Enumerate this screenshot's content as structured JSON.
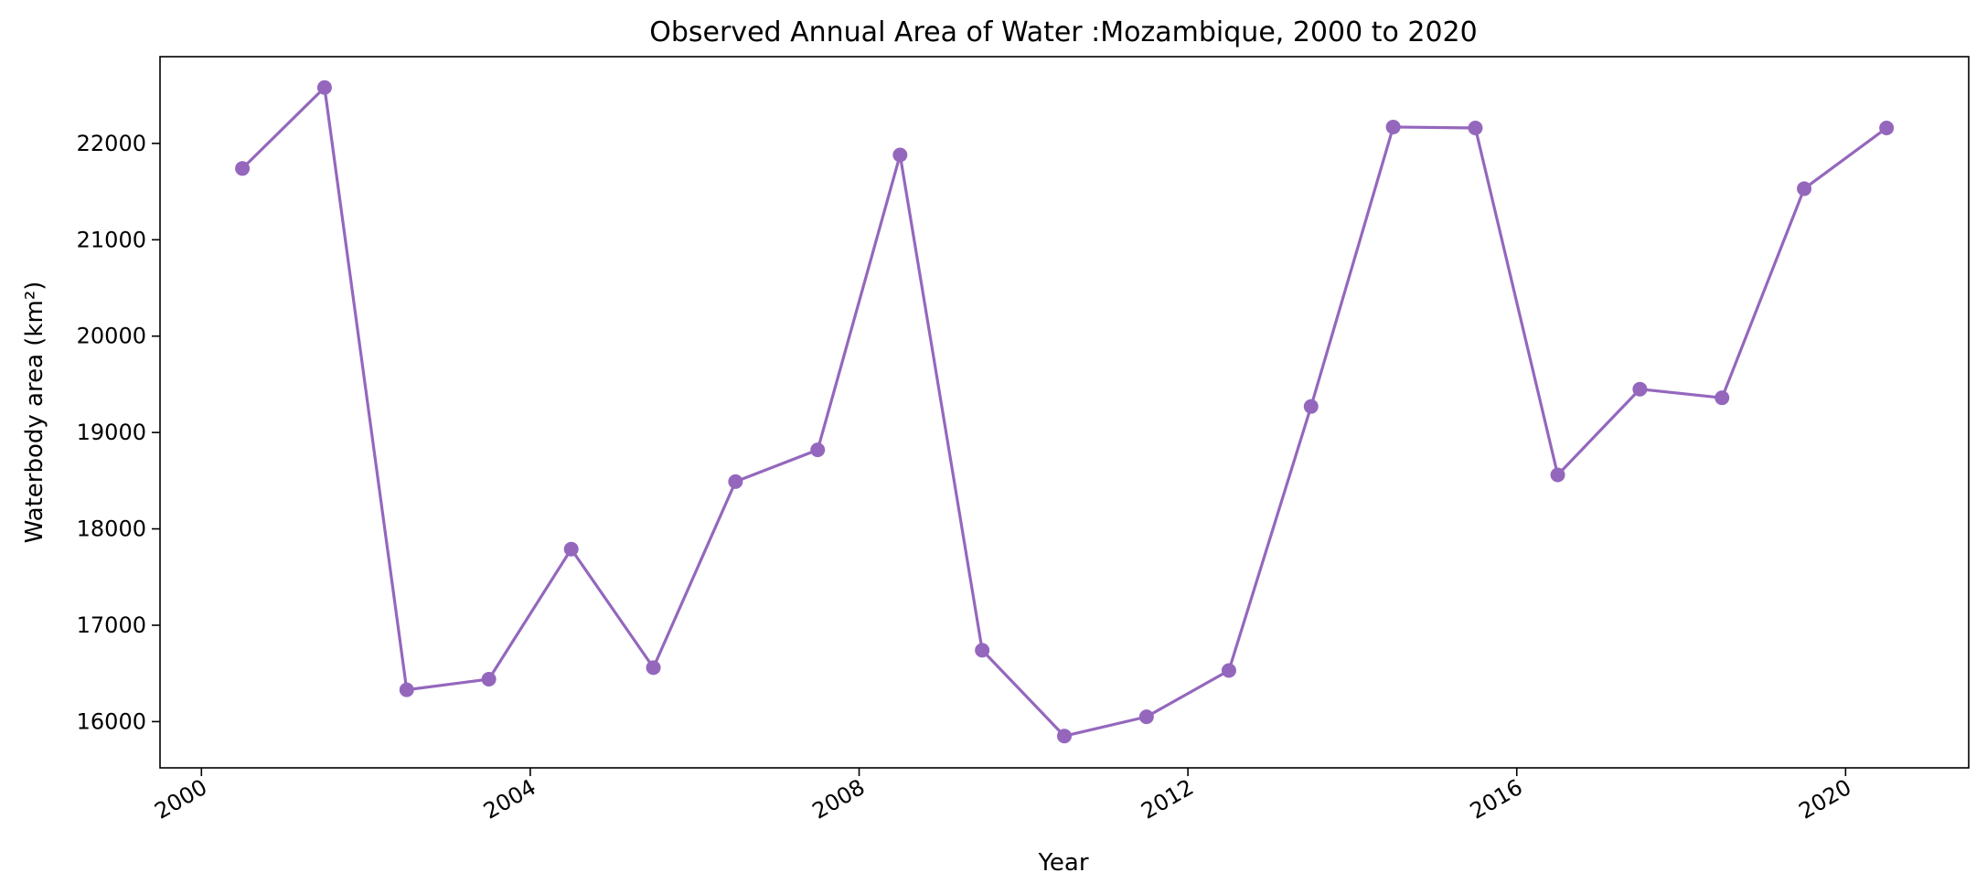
{
  "chart_data": {
    "type": "line",
    "title": "Observed Annual Area of Water :Mozambique, 2000 to 2020",
    "xlabel": "Year",
    "ylabel": "Waterbody area (km²)",
    "xlim": [
      "1999-07-01",
      "2021-07-01"
    ],
    "ylim": [
      15520,
      22900
    ],
    "x_ticks": [
      "2000",
      "2004",
      "2008",
      "2012",
      "2016",
      "2020"
    ],
    "y_ticks": [
      16000,
      17000,
      18000,
      19000,
      20000,
      21000,
      22000
    ],
    "grid": false,
    "line_color": "#9467bd",
    "series": [
      {
        "x": [
          "2000-07-01",
          "2001-07-01",
          "2002-07-01",
          "2003-07-01",
          "2004-07-01",
          "2005-07-01",
          "2006-07-01",
          "2007-07-01",
          "2008-07-01",
          "2009-07-01",
          "2010-07-01",
          "2011-07-01",
          "2012-07-01",
          "2013-07-01",
          "2014-07-01",
          "2015-07-01",
          "2016-07-01",
          "2017-07-01",
          "2018-07-01",
          "2019-07-01",
          "2020-07-01"
        ],
        "values": [
          21740,
          22580,
          16330,
          16440,
          17790,
          16560,
          18490,
          18820,
          21880,
          16740,
          15850,
          16050,
          16530,
          19270,
          22170,
          22160,
          18560,
          19450,
          19360,
          21530,
          22160
        ]
      }
    ]
  }
}
